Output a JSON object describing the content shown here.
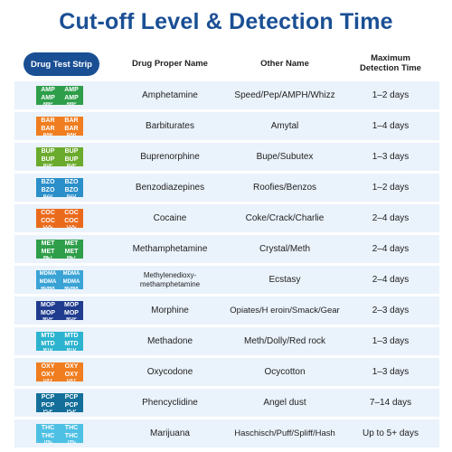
{
  "title": "Cut-off Level & Detection Time",
  "headers": {
    "strip": "Drug Test Strip",
    "proper_name": "Drug Proper Name",
    "other_name": "Other Name",
    "max_time_line1": "Maximum",
    "max_time_line2": "Detection Time"
  },
  "rows": [
    {
      "code": "AMP",
      "color": "#2e9e4a",
      "proper": "Amphetamine",
      "other": "Speed/Pep/AMPH/Whizz",
      "time": "1–2 days"
    },
    {
      "code": "BAR",
      "color": "#f07d1f",
      "proper": "Barbiturates",
      "other": "Amytal",
      "time": "1–4 days"
    },
    {
      "code": "BUP",
      "color": "#6aaa2d",
      "proper": "Buprenorphine",
      "other": "Bupe/Subutex",
      "time": "1–3 days"
    },
    {
      "code": "BZO",
      "color": "#2b8fc9",
      "proper": "Benzodiazepines",
      "other": "Roofies/Benzos",
      "time": "1–2 days"
    },
    {
      "code": "COC",
      "color": "#ea6a1c",
      "proper": "Cocaine",
      "other": "Coke/Crack/Charlie",
      "time": "2–4 days"
    },
    {
      "code": "MET",
      "color": "#2e9e4a",
      "proper": "Methamphetamine",
      "other": "Crystal/Meth",
      "time": "2–4 days"
    },
    {
      "code": "MDMA",
      "color": "#3aa3d6",
      "proper": "Methylenedioxy-methamphetamine",
      "proper_line1": "Methylenedioxy-",
      "proper_line2": "methamphetamine",
      "other": "Ecstasy",
      "time": "2–4 days"
    },
    {
      "code": "MOP",
      "color": "#1f3c8f",
      "proper": "Morphine",
      "other": "Opiates/H eroin/Smack/Gear",
      "time": "2–3 days"
    },
    {
      "code": "MTD",
      "color": "#2bb3cf",
      "proper": "Methadone",
      "other": "Meth/Dolly/Red rock",
      "time": "1–3 days"
    },
    {
      "code": "OXY",
      "color": "#f07d1f",
      "proper": "Oxycodone",
      "other": "Ocycotton",
      "time": "1–3 days"
    },
    {
      "code": "PCP",
      "color": "#136f9a",
      "proper": "Phencyclidine",
      "other": "Angel dust",
      "time": "7–14 days"
    },
    {
      "code": "THC",
      "color": "#4ec0e4",
      "proper": "Marijuana",
      "other": "Haschisch/Puff/Spliff/Hash",
      "time": "Up to 5+ days"
    }
  ]
}
